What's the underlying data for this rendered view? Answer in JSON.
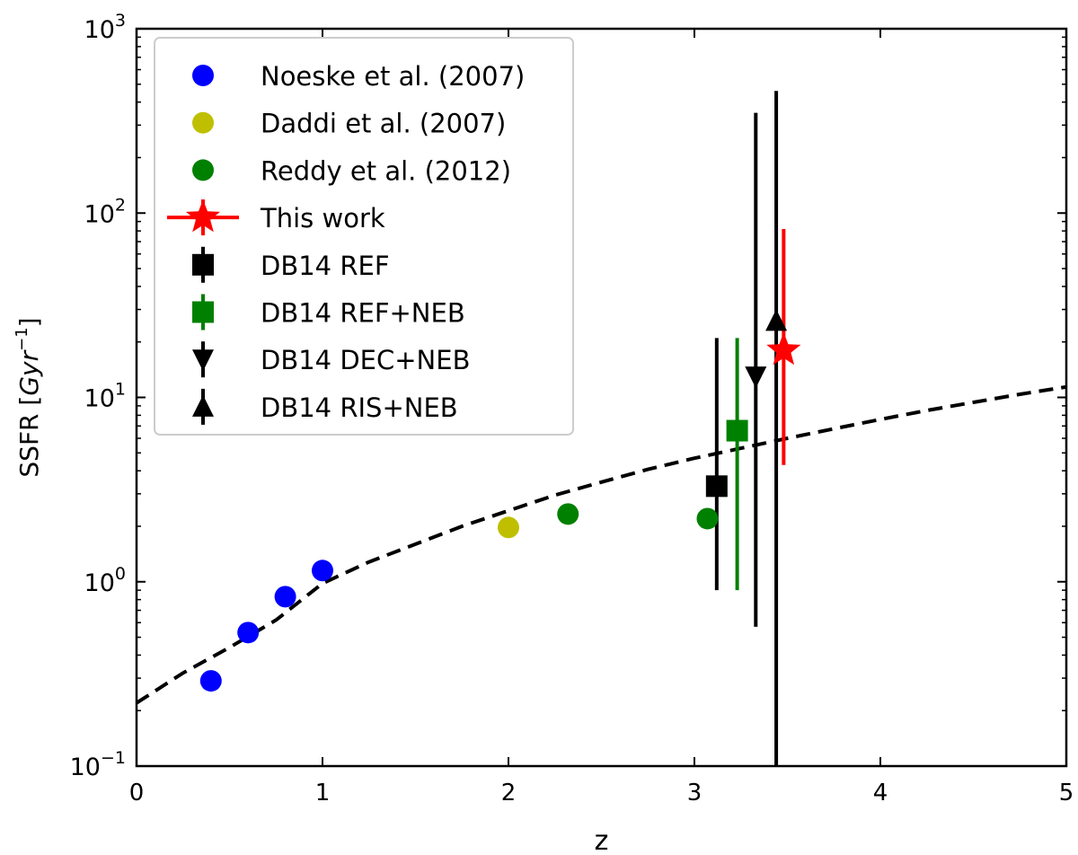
{
  "chart_data": {
    "type": "scatter",
    "xlabel": "z",
    "ylabel": "SSFR [Gyr−1]",
    "ylabel_parts": {
      "main": "SSFR [",
      "italic": "Gyr",
      "sup": "−1",
      "close": "]"
    },
    "xlim": [
      0,
      5
    ],
    "ylim": [
      0.1,
      1000
    ],
    "yscale": "log",
    "grid": false,
    "legend_position": "upper-left",
    "x_ticks": [
      "0",
      "1",
      "2",
      "3",
      "4",
      "5"
    ],
    "y_ticks": [
      {
        "base": "10",
        "exp": "−1"
      },
      {
        "base": "10",
        "exp": "0"
      },
      {
        "base": "10",
        "exp": "1"
      },
      {
        "base": "10",
        "exp": "2"
      },
      {
        "base": "10",
        "exp": "3"
      }
    ],
    "colors": {
      "blue": "#0000ff",
      "olive": "#bfbf00",
      "green": "#008000",
      "red": "#ff0000",
      "black": "#000000"
    },
    "series": [
      {
        "name": "Noeske et al. (2007)",
        "marker": "circle",
        "color": "#0000ff",
        "points": [
          {
            "x": 0.4,
            "y": 0.29
          },
          {
            "x": 0.6,
            "y": 0.53
          },
          {
            "x": 0.8,
            "y": 0.83
          },
          {
            "x": 1.0,
            "y": 1.15
          }
        ]
      },
      {
        "name": "Daddi et al. (2007)",
        "marker": "circle",
        "color": "#bfbf00",
        "points": [
          {
            "x": 2.0,
            "y": 1.97
          }
        ]
      },
      {
        "name": "Reddy et al. (2012)",
        "marker": "circle",
        "color": "#008000",
        "points": [
          {
            "x": 2.32,
            "y": 2.33
          },
          {
            "x": 3.07,
            "y": 2.2
          }
        ]
      },
      {
        "name": "This work",
        "marker": "star",
        "color": "#ff0000",
        "points": [
          {
            "x": 3.48,
            "y": 18,
            "ylow": 4.3,
            "yhigh": 82
          }
        ]
      },
      {
        "name": "DB14 REF",
        "marker": "square",
        "color": "#000000",
        "points": [
          {
            "x": 3.12,
            "y": 3.3,
            "ylow": 0.9,
            "yhigh": 21
          }
        ]
      },
      {
        "name": "DB14 REF+NEB",
        "marker": "square",
        "color": "#008000",
        "points": [
          {
            "x": 3.23,
            "y": 6.6,
            "ylow": 0.9,
            "yhigh": 21
          }
        ]
      },
      {
        "name": "DB14 DEC+NEB",
        "marker": "triangle-down",
        "color": "#000000",
        "points": [
          {
            "x": 3.33,
            "y": 13,
            "ylow": 0.57,
            "yhigh": 350
          }
        ]
      },
      {
        "name": "DB14 RIS+NEB",
        "marker": "triangle-up",
        "color": "#000000",
        "points": [
          {
            "x": 3.44,
            "y": 26,
            "ylow": 0.1,
            "yhigh": 460
          }
        ]
      }
    ],
    "curve": {
      "style": "dashed",
      "color": "#000000",
      "x": [
        0,
        0.25,
        0.5,
        0.75,
        1.0,
        1.25,
        1.5,
        1.75,
        2.0,
        2.25,
        2.5,
        2.75,
        3.0,
        3.25,
        3.5,
        3.75,
        4.0,
        4.25,
        4.5,
        4.75,
        5.0
      ],
      "y": [
        0.22,
        0.32,
        0.44,
        0.62,
        0.98,
        1.28,
        1.6,
        2.0,
        2.43,
        2.95,
        3.47,
        4.07,
        4.68,
        5.3,
        6.0,
        6.76,
        7.6,
        8.5,
        9.4,
        10.4,
        11.4
      ]
    }
  }
}
